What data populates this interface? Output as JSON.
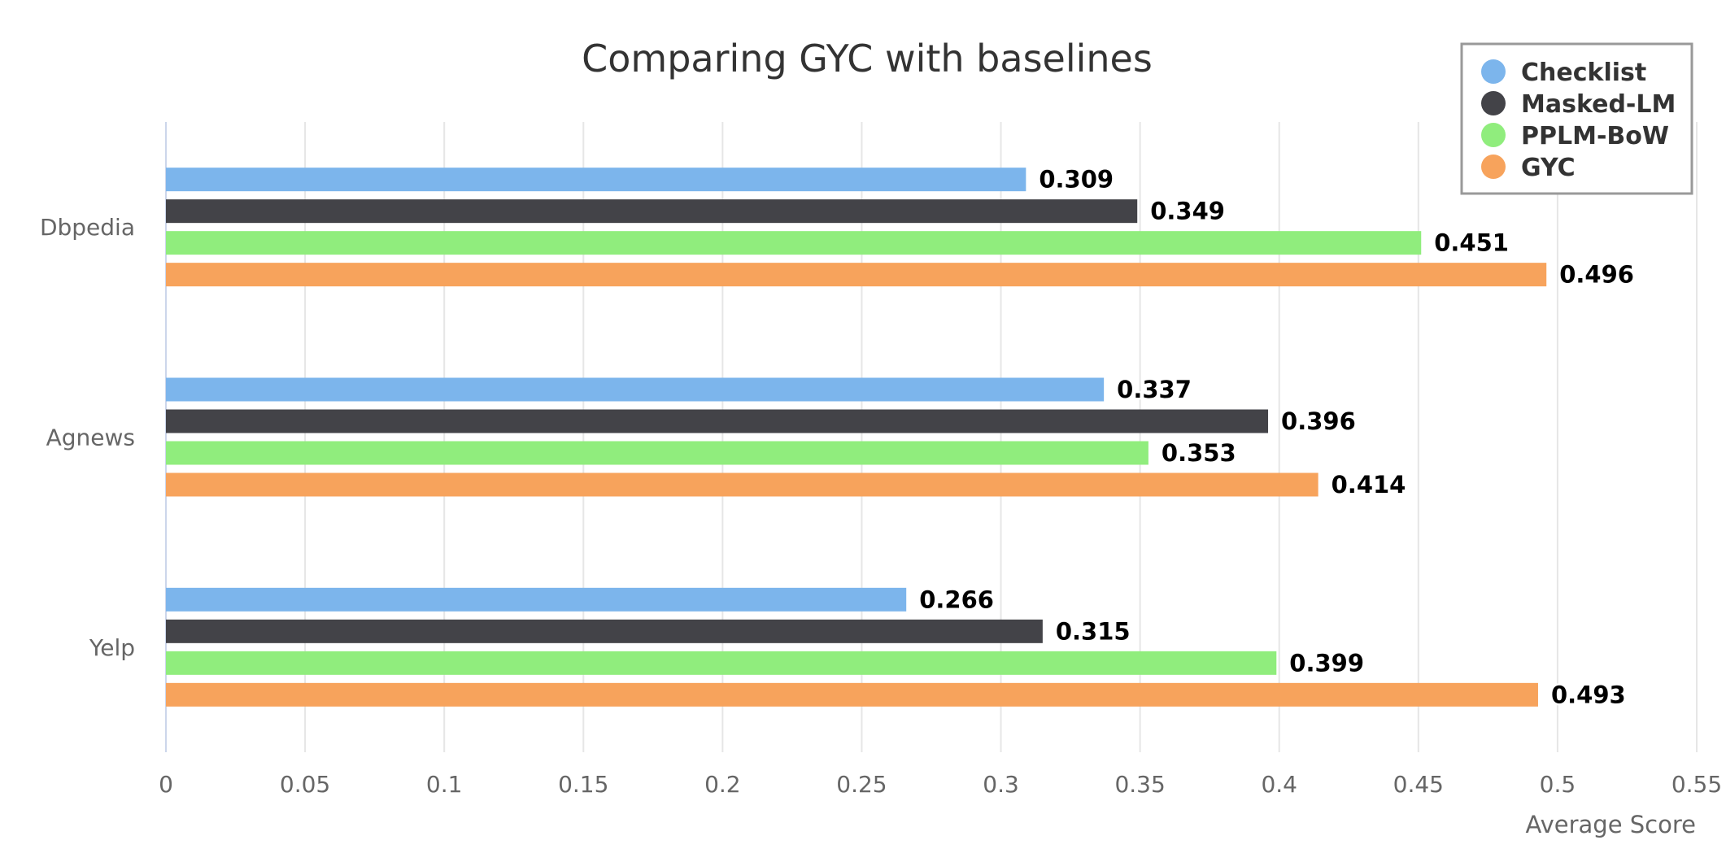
{
  "chart_data": {
    "type": "bar",
    "orientation": "horizontal",
    "title": "Comparing GYC with baselines",
    "xlabel": "Average Score",
    "ylabel": "",
    "categories": [
      "Dbpedia",
      "Agnews",
      "Yelp"
    ],
    "xlim": [
      0,
      0.55
    ],
    "ticks": [
      "0",
      "0.05",
      "0.1",
      "0.15",
      "0.2",
      "0.25",
      "0.3",
      "0.35",
      "0.4",
      "0.45",
      "0.5",
      "0.55"
    ],
    "grid": true,
    "legend": "top-right",
    "series": [
      {
        "name": "Checklist",
        "color": "#7cb5ec",
        "values": [
          0.309,
          0.337,
          0.266
        ]
      },
      {
        "name": "Masked-LM",
        "color": "#434348",
        "values": [
          0.349,
          0.396,
          0.315
        ]
      },
      {
        "name": "PPLM-BoW",
        "color": "#90ed7d",
        "values": [
          0.451,
          0.353,
          0.399
        ]
      },
      {
        "name": "GYC",
        "color": "#f7a35c",
        "values": [
          0.496,
          0.414,
          0.493
        ]
      }
    ]
  }
}
